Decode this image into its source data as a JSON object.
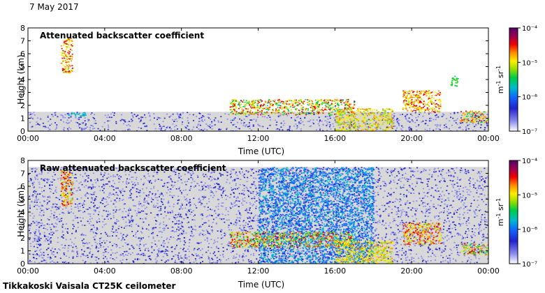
{
  "date_label": "7 May 2017",
  "footer": "Tikkakoski Vaisala CT25K ceilometer",
  "colors": {
    "background_fill": "#d8d8d8",
    "colormap": [
      "#ffffff",
      "#8888ee",
      "#2222cc",
      "#1166ff",
      "#00bbcc",
      "#00cc44",
      "#99dd00",
      "#ffee00",
      "#ff8800",
      "#ee0000",
      "#990055",
      "#550066"
    ]
  },
  "chart_data": [
    {
      "type": "heatmap",
      "title": "Attenuated backscatter coefficient",
      "xlabel": "Time (UTC)",
      "ylabel": "Height (km)",
      "xlim": [
        0,
        24
      ],
      "ylim": [
        0,
        8
      ],
      "x_ticks": [
        "00:00",
        "04:00",
        "08:00",
        "12:00",
        "16:00",
        "20:00",
        "00:00"
      ],
      "y_ticks": [
        "0",
        "1",
        "2",
        "3",
        "4",
        "5",
        "6",
        "7",
        "8"
      ],
      "colorbar": {
        "label": "m⁻¹ sr⁻¹",
        "scale": "log",
        "range": [
          1e-07,
          0.0001
        ],
        "ticks": [
          "10⁻⁷",
          "10⁻⁶",
          "10⁻⁵",
          "10⁻⁴"
        ]
      },
      "features": [
        {
          "desc": "boundary layer aerosol",
          "time": [
            0,
            24
          ],
          "height": [
            0,
            1.5
          ],
          "level": [
            1e-07,
            3e-07
          ]
        },
        {
          "desc": "aerosol layer",
          "time": [
            2,
            3
          ],
          "height": [
            1.2,
            1.5
          ],
          "level": 1e-06
        },
        {
          "desc": "high cloud",
          "time": [
            1.7,
            2.3
          ],
          "height": [
            4.5,
            7.3
          ],
          "level": [
            3e-06,
            3e-05
          ]
        },
        {
          "desc": "residual layer",
          "time": [
            10.5,
            17
          ],
          "height": [
            1.3,
            2.5
          ],
          "level": [
            1e-06,
            3e-05
          ]
        },
        {
          "desc": "descending cloud",
          "time": [
            16,
            19
          ],
          "height": [
            0,
            1.8
          ],
          "level": [
            3e-06,
            1e-05
          ]
        },
        {
          "desc": "cloud",
          "time": [
            19.5,
            21.5
          ],
          "height": [
            1.5,
            3.2
          ],
          "level": [
            3e-06,
            3e-05
          ]
        },
        {
          "desc": "cloud",
          "time": [
            22,
            22.4
          ],
          "height": [
            3.5,
            4.3
          ],
          "level": [
            1e-06,
            3e-06
          ]
        },
        {
          "desc": "low layer",
          "time": [
            22.5,
            24
          ],
          "height": [
            0.7,
            1.6
          ],
          "level": [
            1e-06,
            3e-05
          ]
        }
      ]
    },
    {
      "type": "heatmap",
      "title": "Raw attenuated backscatter coefficient",
      "xlabel": "Time (UTC)",
      "ylabel": "Height (km)",
      "xlim": [
        0,
        24
      ],
      "ylim": [
        0,
        8
      ],
      "x_ticks": [
        "00:00",
        "04:00",
        "08:00",
        "12:00",
        "16:00",
        "20:00",
        "00:00"
      ],
      "y_ticks": [
        "0",
        "1",
        "2",
        "3",
        "4",
        "5",
        "6",
        "7",
        "8"
      ],
      "colorbar": {
        "label": "m⁻¹ sr⁻¹",
        "scale": "log",
        "range": [
          1e-07,
          0.0001
        ],
        "ticks": [
          "10⁻⁷",
          "10⁻⁶",
          "10⁻⁵",
          "10⁻⁴"
        ]
      },
      "features": [
        {
          "desc": "noise background",
          "time": [
            0,
            24
          ],
          "height": [
            0,
            7.5
          ],
          "level": [
            1e-07,
            3e-07
          ]
        },
        {
          "desc": "dense noise",
          "time": [
            12,
            18
          ],
          "height": [
            0,
            7.5
          ],
          "level": [
            3e-07,
            1e-06
          ]
        },
        {
          "desc": "residual layer",
          "time": [
            10.5,
            17
          ],
          "height": [
            1.3,
            2.5
          ],
          "level": [
            1e-06,
            3e-05
          ]
        },
        {
          "desc": "descending cloud",
          "time": [
            16,
            19
          ],
          "height": [
            0,
            1.8
          ],
          "level": [
            3e-06,
            1e-05
          ]
        },
        {
          "desc": "cloud",
          "time": [
            19.5,
            21.5
          ],
          "height": [
            1.5,
            3.2
          ],
          "level": [
            3e-06,
            3e-05
          ]
        },
        {
          "desc": "high cloud",
          "time": [
            1.7,
            2.3
          ],
          "height": [
            4.5,
            7.3
          ],
          "level": [
            3e-06,
            3e-05
          ]
        },
        {
          "desc": "low layer",
          "time": [
            22.5,
            24
          ],
          "height": [
            0.7,
            1.6
          ],
          "level": [
            1e-06,
            3e-05
          ]
        }
      ]
    }
  ]
}
